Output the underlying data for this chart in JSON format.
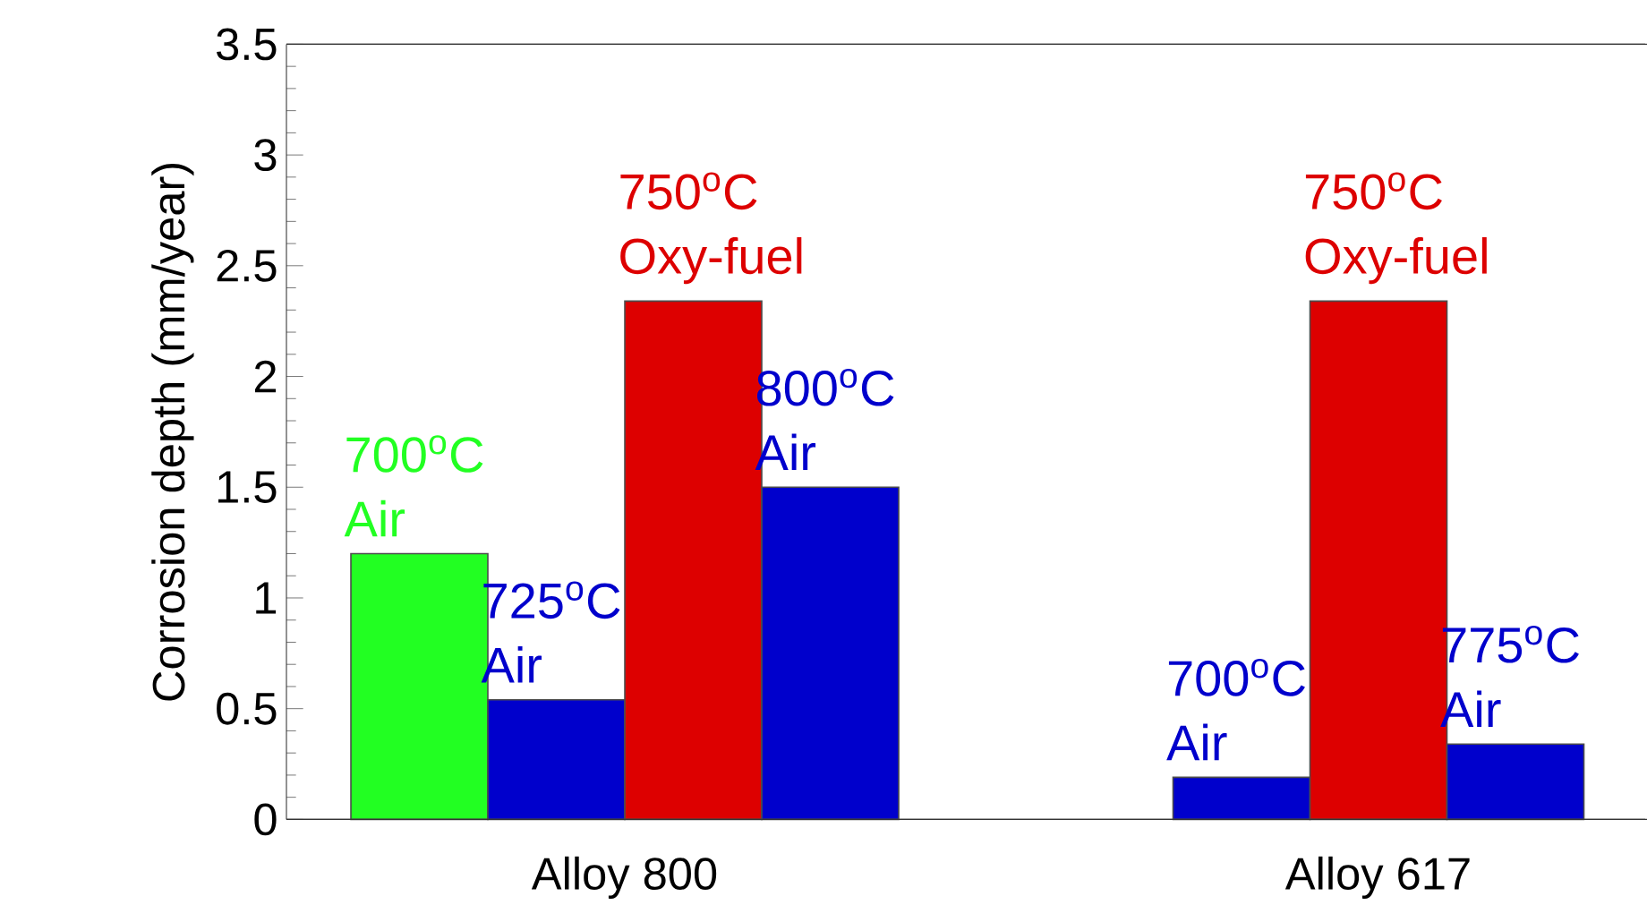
{
  "chart_data": {
    "type": "bar",
    "ylabel": "Corrosion depth (mm/year)",
    "categories": [
      "Alloy 800",
      "Alloy 617"
    ],
    "series": [
      {
        "color": "#22ff22",
        "values": [
          1.2,
          null
        ]
      },
      {
        "color": "#0000cc",
        "values": [
          0.54,
          0.19
        ]
      },
      {
        "color": "#dd0000",
        "values": [
          2.34,
          2.34
        ]
      },
      {
        "color": "#0000cc",
        "values": [
          1.5,
          0.34
        ]
      }
    ],
    "annotations": [
      "700$^{o}$C Air",
      "725$^{o}$C Air",
      "750$^{o}$C Oxy-fuel",
      "800$^{o}$C Air",
      "700$^{o}$C Air",
      "750$^{o}$C Oxy-fuel",
      "775$^{o}$C Air"
    ],
    "ylim": [
      0,
      3.5
    ],
    "yticks": [
      0,
      0.5,
      1,
      1.5,
      2,
      2.5,
      3,
      3.5
    ]
  }
}
